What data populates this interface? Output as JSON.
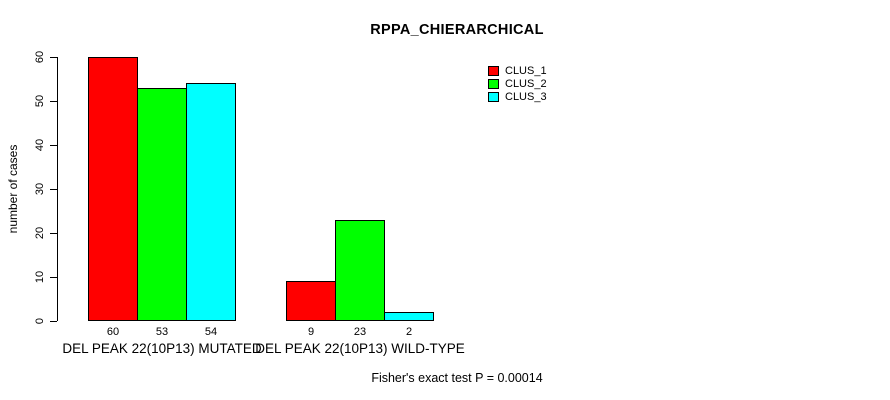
{
  "chart": {
    "title": "RPPA_CHIERARCHICAL",
    "ylabel": "number of cases",
    "footnote": "Fisher's exact test P = 0.00014"
  },
  "chart_data": {
    "type": "bar",
    "title": "RPPA_CHIERARCHICAL",
    "xlabel": "",
    "ylabel": "number of cases",
    "categories": [
      "DEL PEAK 22(10P13) MUTATED",
      "DEL PEAK 22(10P13) WILD-TYPE"
    ],
    "series": [
      {
        "name": "CLUS_1",
        "color": "#FF0000",
        "values": [
          60,
          9
        ]
      },
      {
        "name": "CLUS_2",
        "color": "#00FF00",
        "values": [
          53,
          23
        ]
      },
      {
        "name": "CLUS_3",
        "color": "#00FFFF",
        "values": [
          54,
          2
        ]
      }
    ],
    "bar_value_labels": [
      [
        60,
        53,
        54
      ],
      [
        9,
        23,
        2
      ]
    ],
    "ylim": [
      0,
      60
    ],
    "y_ticks": [
      0,
      10,
      20,
      30,
      40,
      50,
      60
    ],
    "grid": false,
    "legend_position": "top-right",
    "annotation": "Fisher's exact test P = 0.00014",
    "bar_border_color": "#000000",
    "background_color": "#FFFFFF"
  }
}
